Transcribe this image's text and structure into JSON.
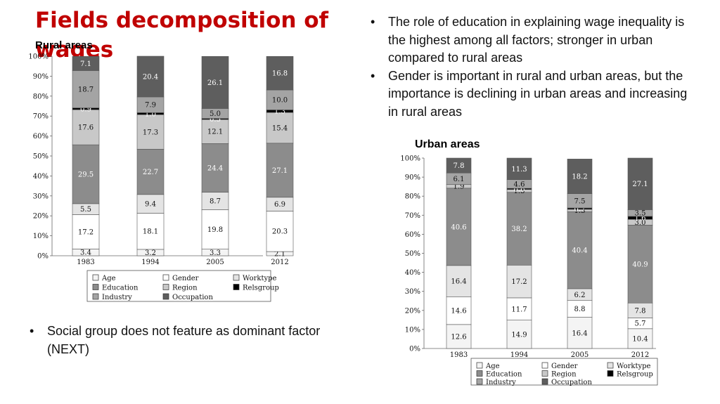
{
  "slide": {
    "title": "Fields decomposition of wages",
    "bullets_top": [
      "The role of education in explaining wage inequality is the highest among all factors; stronger in urban compared to rural areas",
      "Gender is important in rural and urban areas, but the importance is declining in urban areas and increasing in rural areas"
    ],
    "bullets_bottom": [
      "Social group does not feature as dominant factor (NEXT)"
    ]
  },
  "colors": {
    "Age": "#f4f4f4",
    "Gender": "#ffffff",
    "Education": "#8c8c8c",
    "Region": "#c8c8c8",
    "Industry": "#a4a4a4",
    "Occupation": "#5e5e5e",
    "Worktype": "#e4e4e4",
    "Relsgroup": "#000000"
  },
  "chart_data": [
    {
      "type": "bar",
      "stacked": true,
      "title": "Rural areas",
      "categories": [
        "1983",
        "1994",
        "2005",
        "2012"
      ],
      "ylim": [
        0,
        100
      ],
      "yticks": [
        "0%",
        "10%",
        "20%",
        "30%",
        "40%",
        "50%",
        "60%",
        "70%",
        "80%",
        "90%",
        "100%"
      ],
      "legend_order": [
        "Age",
        "Gender",
        "Worktype",
        "Education",
        "Region",
        "Relsgroup",
        "Industry",
        "Occupation"
      ],
      "series": [
        {
          "name": "Age",
          "values": [
            3.4,
            3.2,
            3.3,
            2.1
          ]
        },
        {
          "name": "Gender",
          "values": [
            17.2,
            18.1,
            19.8,
            20.3
          ]
        },
        {
          "name": "Worktype",
          "values": [
            5.5,
            9.4,
            8.7,
            6.9
          ]
        },
        {
          "name": "Education",
          "values": [
            29.5,
            22.7,
            24.4,
            27.1
          ]
        },
        {
          "name": "Region",
          "values": [
            17.6,
            17.3,
            12.1,
            15.4
          ]
        },
        {
          "name": "Relsgroup",
          "values": [
            0.9,
            1.0,
            0.5,
            1.3
          ]
        },
        {
          "name": "Industry",
          "values": [
            18.7,
            7.9,
            5.0,
            10.0
          ]
        },
        {
          "name": "Occupation",
          "values": [
            7.1,
            20.4,
            26.1,
            16.8
          ]
        }
      ]
    },
    {
      "type": "bar",
      "stacked": true,
      "title": "Urban areas",
      "categories": [
        "1983",
        "1994",
        "2005",
        "2012"
      ],
      "ylim": [
        0,
        100
      ],
      "yticks": [
        "0%",
        "10%",
        "20%",
        "30%",
        "40%",
        "50%",
        "60%",
        "70%",
        "80%",
        "90%",
        "100%"
      ],
      "legend_order": [
        "Age",
        "Gender",
        "Worktype",
        "Education",
        "Region",
        "Relsgroup",
        "Industry",
        "Occupation"
      ],
      "series": [
        {
          "name": "Age",
          "values": [
            12.6,
            14.9,
            16.4,
            10.4
          ]
        },
        {
          "name": "Gender",
          "values": [
            14.6,
            11.7,
            8.8,
            5.7
          ]
        },
        {
          "name": "Worktype",
          "values": [
            16.4,
            17.2,
            6.2,
            7.8
          ]
        },
        {
          "name": "Education",
          "values": [
            40.6,
            38.2,
            40.4,
            40.9
          ]
        },
        {
          "name": "Region",
          "values": [
            1.9,
            1.5,
            1.3,
            3.0
          ]
        },
        {
          "name": "Relsgroup",
          "values": [
            null,
            0.6,
            0.7,
            1.6
          ]
        },
        {
          "name": "Industry",
          "values": [
            6.1,
            4.6,
            7.5,
            3.5
          ]
        },
        {
          "name": "Occupation",
          "values": [
            7.8,
            11.3,
            18.2,
            27.1
          ]
        }
      ]
    }
  ]
}
